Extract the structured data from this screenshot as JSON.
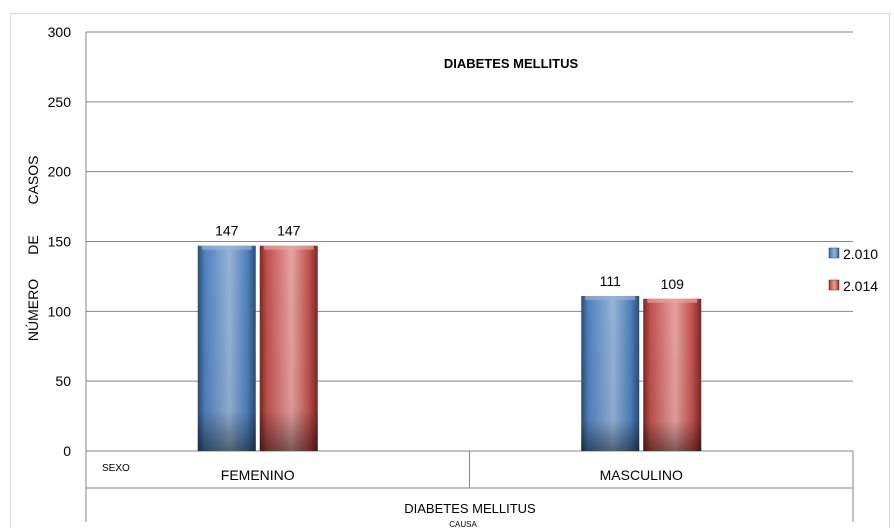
{
  "chart_data": {
    "type": "bar",
    "title": "DIABETES MELLITUS",
    "ylabel_parts": [
      "NÚMERO",
      "DE",
      "CASOS"
    ],
    "row_header": "SEXO",
    "group_label": "DIABETES MELLITUS",
    "xlabel": "CAUSA",
    "categories": [
      "FEMENINO",
      "MASCULINO"
    ],
    "series": [
      {
        "name": "2.010",
        "values": [
          147,
          111
        ],
        "color": "#4f81bd",
        "dark": "#2c4d75",
        "light": "#95b3d7"
      },
      {
        "name": "2.014",
        "values": [
          147,
          109
        ],
        "color": "#c0504d",
        "dark": "#7a2725",
        "light": "#e6a3a1"
      }
    ],
    "ylim": [
      0,
      300
    ],
    "yticks": [
      0,
      50,
      100,
      150,
      200,
      250,
      300
    ],
    "grid": true,
    "legend": "right"
  }
}
